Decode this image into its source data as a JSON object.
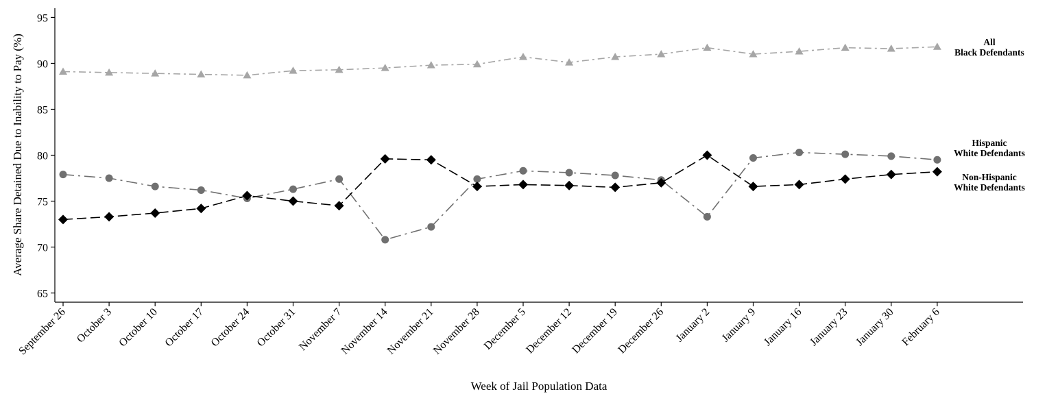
{
  "chart_data": {
    "type": "line",
    "xlabel": "Week of Jail Population Data",
    "ylabel": "Average Share Detained Due to Inability to Pay (%)",
    "ylim": [
      64,
      96
    ],
    "yticks": [
      65,
      70,
      75,
      80,
      85,
      90,
      95
    ],
    "categories": [
      "September 26",
      "October 3",
      "October 10",
      "October 17",
      "October 24",
      "October 31",
      "November 7",
      "November 14",
      "November 21",
      "November 28",
      "December 5",
      "December 12",
      "December 19",
      "December 26",
      "January 2",
      "January 9",
      "January 16",
      "January 23",
      "January 30",
      "February 6"
    ],
    "grid": false,
    "legend": "none",
    "series": [
      {
        "name_lines": [
          "All",
          "Black Defendants"
        ],
        "marker": "triangle",
        "color": "#a6a6a6",
        "dash": "dash-dot",
        "values": [
          89.1,
          89.0,
          88.9,
          88.8,
          88.7,
          89.2,
          89.3,
          89.5,
          89.8,
          89.9,
          90.7,
          90.1,
          90.7,
          91.0,
          91.7,
          91.0,
          91.3,
          91.7,
          91.6,
          91.8
        ]
      },
      {
        "name_lines": [
          "Hispanic",
          "White Defendants"
        ],
        "marker": "circle",
        "color": "#707070",
        "dash": "long-dash-dot",
        "values": [
          77.9,
          77.5,
          76.6,
          76.2,
          75.3,
          76.3,
          77.4,
          70.8,
          72.2,
          77.4,
          78.3,
          78.1,
          77.8,
          77.3,
          73.3,
          79.7,
          80.3,
          80.1,
          79.9,
          79.5
        ]
      },
      {
        "name_lines": [
          "Non-Hispanic",
          "White Defendants"
        ],
        "marker": "diamond",
        "color": "#000000",
        "dash": "dash",
        "values": [
          73.0,
          73.3,
          73.7,
          74.2,
          75.6,
          75.0,
          74.5,
          79.6,
          79.5,
          76.6,
          76.8,
          76.7,
          76.5,
          77.0,
          80.0,
          76.6,
          76.8,
          77.4,
          77.9,
          78.2
        ]
      }
    ]
  }
}
